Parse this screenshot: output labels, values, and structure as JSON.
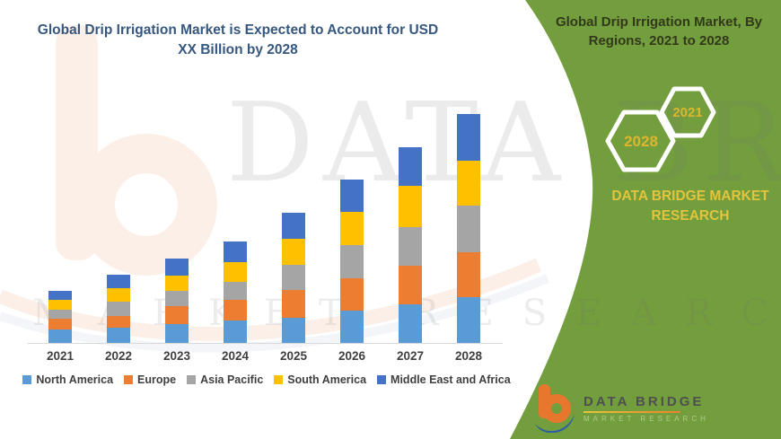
{
  "colors": {
    "panel_green": "#739E3E",
    "title_blue": "#36577E",
    "panel_title_dark": "#32391B",
    "gold": "#E3C43C",
    "hex_year_gold": "#DDB62E",
    "axis_gray": "#D9D9D9",
    "label_gray": "#3F3F3F"
  },
  "chart_title": {
    "text": "Global Drip Irrigation Market is Expected to Account for USD XX Billion by 2028"
  },
  "chart_data": {
    "type": "bar",
    "subtype": "stacked-column",
    "title": "Global Drip Irrigation Market is Expected to Account for USD XX Billion by 2028",
    "categories": [
      "2021",
      "2022",
      "2023",
      "2024",
      "2025",
      "2026",
      "2027",
      "2028"
    ],
    "series": [
      {
        "name": "North America",
        "color": "#5B9BD5",
        "values": [
          15,
          17,
          21,
          25,
          28,
          36,
          43,
          51
        ]
      },
      {
        "name": "Europe",
        "color": "#ED7D31",
        "values": [
          12,
          13,
          20,
          23,
          31,
          36,
          43,
          50
        ]
      },
      {
        "name": "Asia Pacific",
        "color": "#A5A5A5",
        "values": [
          10,
          16,
          17,
          20,
          28,
          37,
          43,
          52
        ]
      },
      {
        "name": "South America",
        "color": "#FFC000",
        "values": [
          11,
          15,
          17,
          22,
          29,
          37,
          46,
          50
        ]
      },
      {
        "name": "Middle East and Africa",
        "color": "#4472C4",
        "values": [
          10,
          15,
          19,
          23,
          29,
          36,
          43,
          52
        ]
      }
    ],
    "xlabel": "",
    "ylabel": "",
    "y_axis_visible": false,
    "values_note": "no numeric axis shown in chart; values are relative stacked-segment heights",
    "grid": false,
    "legend_position": "bottom"
  },
  "panel": {
    "title": "Global Drip Irrigation Market, By Regions, 2021 to 2028",
    "hexagon_back_year": "2021",
    "hexagon_front_year": "2028",
    "brand_line1": "DATA BRIDGE MARKET",
    "brand_line2": "RESEARCH"
  },
  "footer_logo": {
    "name": "DATA BRIDGE",
    "subtext": "MARKET RESEARCH"
  },
  "watermark": {
    "line1": "DATA BRIDGE",
    "line2": "MARKET RESEARCH"
  }
}
